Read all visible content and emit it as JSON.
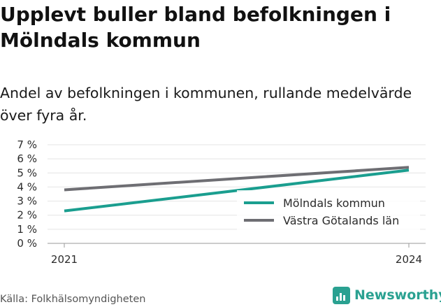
{
  "title": "Upplevt buller bland befolkningen i Mölndals kommun",
  "subtitle": "Andel av befolkningen i kommunen, rullande medelvärde över fyra år.",
  "source": "Källa: Folkhälsomyndigheten",
  "brand": "Newsworthy",
  "icons": {
    "brand_logo": "bar-chart-icon"
  },
  "chart_data": {
    "type": "line",
    "title": "Upplevt buller bland befolkningen i Mölndals kommun",
    "subtitle": "Andel av befolkningen i kommunen, rullande medelvärde över fyra år.",
    "x": [
      2021,
      2024
    ],
    "x_tick_labels": [
      "2021",
      "2024"
    ],
    "y_ticks": [
      0,
      1,
      2,
      3,
      4,
      5,
      6,
      7
    ],
    "y_tick_labels": [
      "0 %",
      "1 %",
      "2 %",
      "3 %",
      "4 %",
      "5 %",
      "6 %",
      "7 %"
    ],
    "ylim": [
      0,
      7
    ],
    "grid": true,
    "legend_position": "bottom-right",
    "series": [
      {
        "name": "Mölndals kommun",
        "color": "#1a9e8f",
        "values": [
          2.3,
          5.2
        ]
      },
      {
        "name": "Västra Götalands län",
        "color": "#6e6e73",
        "values": [
          3.8,
          5.4
        ]
      }
    ]
  }
}
